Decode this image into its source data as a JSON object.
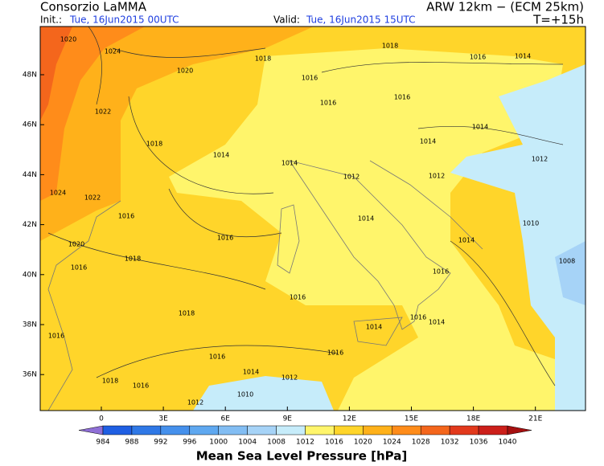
{
  "header": {
    "title": "Consorzio LaMMA",
    "model": "ARW 12km − (ECM 25km)",
    "init_label": "Init.:",
    "init": "Tue, 16Jun2015 00UTC",
    "valid_label": "Valid:",
    "valid": "Tue, 16Jun2015 15UTC",
    "lead": "T=+15h"
  },
  "map": {
    "lat_labels": [
      "48N",
      "46N",
      "44N",
      "42N",
      "40N",
      "38N",
      "36N"
    ],
    "lon_labels": [
      "0",
      "3E",
      "6E",
      "9E",
      "12E",
      "15E",
      "18E",
      "21E"
    ],
    "isobar_labels": [
      "1020",
      "1024",
      "1020",
      "1022",
      "1018",
      "1014",
      "1018",
      "1016",
      "1016",
      "1016",
      "1018",
      "1016",
      "1014",
      "1014",
      "1014",
      "1012",
      "1012",
      "1014",
      "1012",
      "1014",
      "1016",
      "1018",
      "1020",
      "1016",
      "1018",
      "1016",
      "1016",
      "1016",
      "1016",
      "1014",
      "1012",
      "1010",
      "1012",
      "1018",
      "1016",
      "1014",
      "1014",
      "1014",
      "1010",
      "1008",
      "1016",
      "1016",
      "1024",
      "1022",
      "1016"
    ]
  },
  "colorbar": {
    "title": "Mean Sea Level Pressure [hPa]",
    "levels": [
      984,
      988,
      992,
      996,
      1000,
      1004,
      1008,
      1012,
      1016,
      1020,
      1024,
      1028,
      1032,
      1036,
      1040
    ],
    "colors": [
      "#8f6fd6",
      "#1f5fe3",
      "#2f78e6",
      "#4590ec",
      "#5fa8f0",
      "#82bdf3",
      "#a6d3f7",
      "#c6ecfa",
      "#fff56b",
      "#ffd52a",
      "#ffb11a",
      "#ff8c1a",
      "#f4661c",
      "#e2391c",
      "#cc1f1a",
      "#a61010"
    ]
  }
}
